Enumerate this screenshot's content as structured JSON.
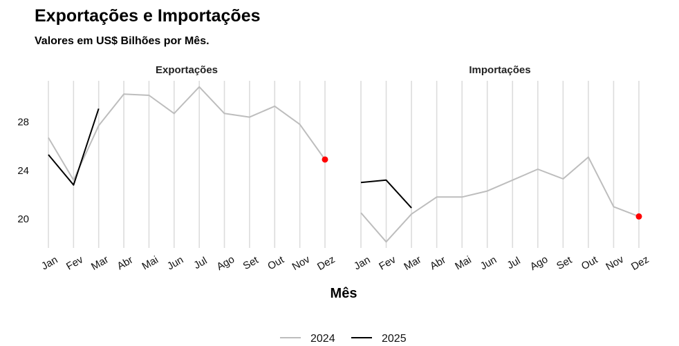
{
  "title": "Exportações e Importações",
  "subtitle": "Valores em US$ Bilhões por Mês.",
  "colors": {
    "y2024": "#bdbdbd",
    "y2025": "#000000",
    "highlight": "#ff0000",
    "grid": "#dcdcdc"
  },
  "chart_data": {
    "type": "line",
    "xlabel": "Mês",
    "ylabel": "",
    "categories": [
      "Jan",
      "Fev",
      "Mar",
      "Abr",
      "Mai",
      "Jun",
      "Jul",
      "Ago",
      "Set",
      "Out",
      "Nov",
      "Dez"
    ],
    "ylim": [
      17.6,
      31.4
    ],
    "yticks": [
      20,
      24,
      28
    ],
    "grid": true,
    "legend": "bottom",
    "legend_entries": [
      "2024",
      "2025"
    ],
    "panels": [
      {
        "name": "Exportações",
        "series": [
          {
            "name": "2024",
            "values": [
              26.7,
              23.2,
              27.7,
              30.3,
              30.2,
              28.7,
              30.9,
              28.7,
              28.4,
              29.3,
              27.8,
              24.9
            ]
          },
          {
            "name": "2025",
            "values": [
              25.3,
              22.8,
              29.1
            ]
          }
        ],
        "highlight": {
          "category": "Dez",
          "value": 24.9
        }
      },
      {
        "name": "Importações",
        "series": [
          {
            "name": "2024",
            "values": [
              20.5,
              18.1,
              20.4,
              21.8,
              21.8,
              22.3,
              23.2,
              24.1,
              23.3,
              25.1,
              21.0,
              20.2
            ]
          },
          {
            "name": "2025",
            "values": [
              23.0,
              23.2,
              20.9
            ]
          }
        ],
        "highlight": {
          "category": "Dez",
          "value": 20.2
        }
      }
    ]
  }
}
